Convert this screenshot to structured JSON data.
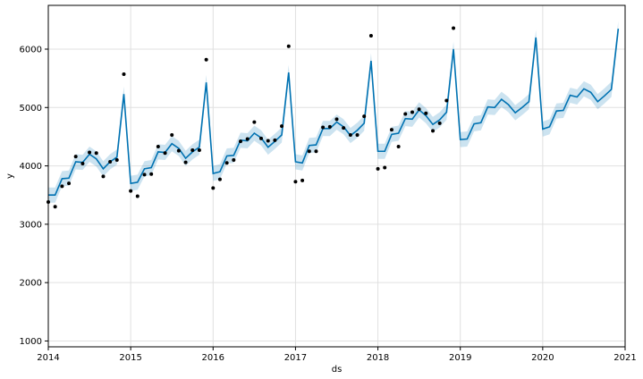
{
  "chart_data": {
    "type": "line",
    "title": "",
    "xlabel": "ds",
    "ylabel": "y",
    "xlim": [
      2014.0,
      2021.0
    ],
    "ylim": [
      900,
      6750
    ],
    "grid": true,
    "x_ticks": [
      2014,
      2015,
      2016,
      2017,
      2018,
      2019,
      2020,
      2021
    ],
    "x_tick_labels": [
      "2014",
      "2015",
      "2016",
      "2017",
      "2018",
      "2019",
      "2020",
      "2021"
    ],
    "y_ticks": [
      1000,
      2000,
      3000,
      4000,
      5000,
      6000
    ],
    "y_tick_labels": [
      "1000",
      "2000",
      "3000",
      "4000",
      "5000",
      "6000"
    ],
    "colors": {
      "forecast": "#0072B2",
      "interval": "#0072B2",
      "observed": "#000000",
      "grid": "#e0e0e0"
    },
    "series": [
      {
        "kind": "observed",
        "x": [
          2014.0,
          2014.083,
          2014.167,
          2014.25,
          2014.333,
          2014.417,
          2014.5,
          2014.583,
          2014.667,
          2014.75,
          2014.833,
          2014.917,
          2015.0,
          2015.083,
          2015.167,
          2015.25,
          2015.333,
          2015.417,
          2015.5,
          2015.583,
          2015.667,
          2015.75,
          2015.833,
          2015.917,
          2016.0,
          2016.083,
          2016.167,
          2016.25,
          2016.333,
          2016.417,
          2016.5,
          2016.583,
          2016.667,
          2016.75,
          2016.833,
          2016.917,
          2017.0,
          2017.083,
          2017.167,
          2017.25,
          2017.333,
          2017.417,
          2017.5,
          2017.583,
          2017.667,
          2017.75,
          2017.833,
          2017.917,
          2018.0,
          2018.083,
          2018.167,
          2018.25,
          2018.333,
          2018.417,
          2018.5,
          2018.583,
          2018.667,
          2018.75,
          2018.833,
          2018.917
        ],
        "y": [
          3380,
          3300,
          3650,
          3700,
          4160,
          4040,
          4230,
          4220,
          3820,
          4070,
          4100,
          5570,
          3570,
          3480,
          3850,
          3860,
          4330,
          4220,
          4530,
          4260,
          4060,
          4270,
          4270,
          5820,
          3620,
          3770,
          4050,
          4100,
          4420,
          4460,
          4750,
          4470,
          4430,
          4440,
          4680,
          6050,
          3730,
          3750,
          4250,
          4250,
          4660,
          4670,
          4800,
          4650,
          4530,
          4530,
          4850,
          6230,
          3950,
          3970,
          4620,
          4330,
          4890,
          4920,
          4970,
          4900,
          4600,
          4730,
          5120,
          6360
        ]
      },
      {
        "kind": "forecast",
        "x": [
          2014.0,
          2014.083,
          2014.167,
          2014.25,
          2014.333,
          2014.417,
          2014.5,
          2014.583,
          2014.667,
          2014.75,
          2014.833,
          2014.917,
          2015.0,
          2015.083,
          2015.167,
          2015.25,
          2015.333,
          2015.417,
          2015.5,
          2015.583,
          2015.667,
          2015.75,
          2015.833,
          2015.917,
          2016.0,
          2016.083,
          2016.167,
          2016.25,
          2016.333,
          2016.417,
          2016.5,
          2016.583,
          2016.667,
          2016.75,
          2016.833,
          2016.917,
          2017.0,
          2017.083,
          2017.167,
          2017.25,
          2017.333,
          2017.417,
          2017.5,
          2017.583,
          2017.667,
          2017.75,
          2017.833,
          2017.917,
          2018.0,
          2018.083,
          2018.167,
          2018.25,
          2018.333,
          2018.417,
          2018.5,
          2018.583,
          2018.667,
          2018.75,
          2018.833,
          2018.917,
          2019.0,
          2019.083,
          2019.167,
          2019.25,
          2019.333,
          2019.417,
          2019.5,
          2019.583,
          2019.667,
          2019.75,
          2019.833,
          2019.917,
          2020.0,
          2020.083,
          2020.167,
          2020.25,
          2020.333,
          2020.417,
          2020.5,
          2020.583,
          2020.667,
          2020.75,
          2020.833,
          2020.917
        ],
        "y": [
          3500,
          3500,
          3780,
          3790,
          4070,
          4060,
          4200,
          4120,
          3950,
          4070,
          4150,
          5230,
          3700,
          3720,
          3950,
          3970,
          4240,
          4230,
          4380,
          4300,
          4130,
          4240,
          4320,
          5430,
          3870,
          3900,
          4170,
          4180,
          4440,
          4430,
          4560,
          4480,
          4320,
          4420,
          4530,
          5600,
          4070,
          4050,
          4350,
          4360,
          4640,
          4640,
          4750,
          4670,
          4520,
          4610,
          4730,
          5800,
          4250,
          4250,
          4540,
          4560,
          4810,
          4800,
          4960,
          4860,
          4710,
          4790,
          4920,
          6000,
          4450,
          4460,
          4720,
          4740,
          5010,
          5000,
          5140,
          5050,
          4910,
          5000,
          5100,
          6200,
          4630,
          4670,
          4940,
          4950,
          5210,
          5180,
          5320,
          5260,
          5100,
          5200,
          5310,
          6350
        ]
      }
    ],
    "interval_half_width": 130
  }
}
